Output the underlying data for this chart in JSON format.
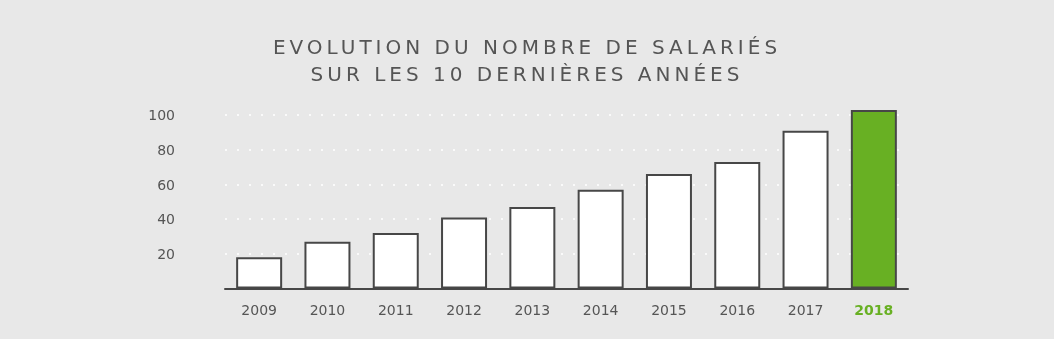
{
  "chart_data": {
    "type": "bar",
    "title": "EVOLUTION DU NOMBRE DE SALARIÉS\nSUR LES 10 DERNIÈRES ANNÉES",
    "categories": [
      "2009",
      "2010",
      "2011",
      "2012",
      "2013",
      "2014",
      "2015",
      "2016",
      "2017",
      "2018"
    ],
    "values": [
      18,
      27,
      32,
      41,
      47,
      57,
      66,
      73,
      91,
      103
    ],
    "colors": [
      "#ffffff",
      "#ffffff",
      "#ffffff",
      "#ffffff",
      "#ffffff",
      "#ffffff",
      "#ffffff",
      "#ffffff",
      "#ffffff",
      "#68b023"
    ],
    "ylim": [
      0,
      103
    ],
    "yticks": [
      20,
      40,
      60,
      80,
      100
    ],
    "grid": "y"
  }
}
